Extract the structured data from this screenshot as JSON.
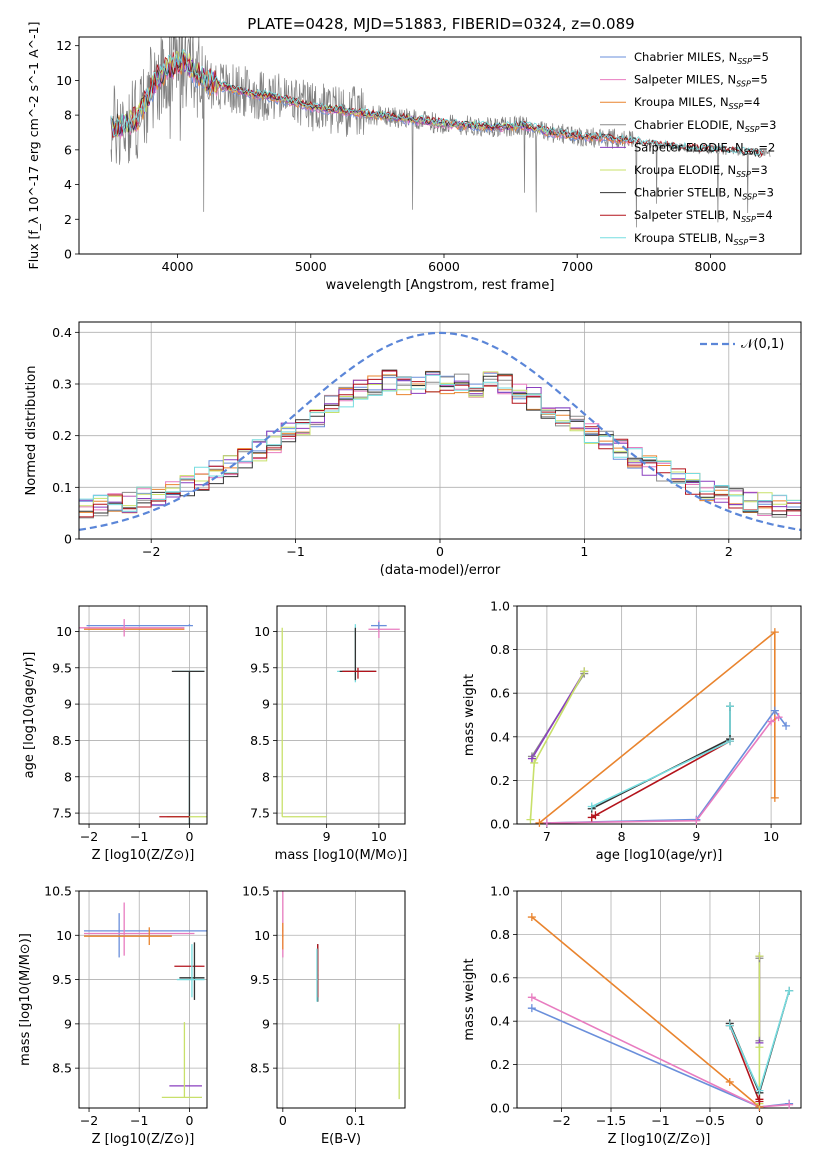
{
  "figure": {
    "title": "PLATE=0428, MJD=51883, FIBERID=0324, z=0.089"
  },
  "colors": {
    "Chabrier MILES": "#6a8fdb",
    "Salpeter MILES": "#e87cc0",
    "Kroupa MILES": "#e9842e",
    "Chabrier ELODIE": "#8b8b8b",
    "Salpeter ELODIE": "#8a3fbf",
    "Kroupa ELODIE": "#c8e06a",
    "Chabrier STELIB": "#333333",
    "Salpeter STELIB": "#b3131b",
    "Kroupa STELIB": "#76dde0",
    "gauss": "#5b86d8"
  },
  "chart_data": [
    {
      "id": "spectrum",
      "type": "line",
      "xlabel": "wavelength [Angstrom, rest frame]",
      "ylabel": "Flux [f_λ 10^-17 erg cm^-2 s^-1 A^-1]",
      "xlim": [
        3260,
        8680
      ],
      "ylim": [
        0,
        12.5
      ],
      "xticks": [
        4000,
        5000,
        6000,
        7000,
        8000
      ],
      "yticks": [
        0,
        2,
        4,
        6,
        8,
        10,
        12
      ],
      "legend_position": "top-right",
      "legend": [
        {
          "model": "Chabrier MILES",
          "nssp": "5"
        },
        {
          "model": "Salpeter MILES",
          "nssp": "5"
        },
        {
          "model": "Kroupa MILES",
          "nssp": "4"
        },
        {
          "model": "Chabrier ELODIE",
          "nssp": "3"
        },
        {
          "model": "Salpeter ELODIE",
          "nssp": "2"
        },
        {
          "model": "Kroupa ELODIE",
          "nssp": "3"
        },
        {
          "model": "Chabrier STELIB",
          "nssp": "3"
        },
        {
          "model": "Salpeter STELIB",
          "nssp": "4"
        },
        {
          "model": "Kroupa STELIB",
          "nssp": "3"
        }
      ],
      "continuum": {
        "x": [
          3500,
          3700,
          3850,
          3950,
          4050,
          4200,
          4400,
          4600,
          4800,
          5000,
          5200,
          5400,
          5600,
          5800,
          6000,
          6200,
          6400,
          6600,
          6800,
          7000,
          7200,
          7420,
          7600,
          7800,
          8000,
          8200,
          8450
        ],
        "y": [
          7.2,
          7.8,
          10.2,
          10.8,
          11.2,
          10.0,
          9.5,
          9.2,
          8.9,
          8.5,
          8.3,
          8.1,
          7.9,
          7.7,
          7.5,
          7.4,
          7.3,
          7.4,
          7.0,
          6.8,
          6.7,
          6.5,
          6.3,
          6.1,
          6.0,
          5.9,
          5.7
        ]
      },
      "grid": false
    },
    {
      "id": "residuals",
      "type": "histogram",
      "xlabel": "(data-model)/error",
      "ylabel": "Normed distribution",
      "xlim": [
        -2.5,
        2.5
      ],
      "ylim": [
        0,
        0.42
      ],
      "xticks": [
        -2,
        -1,
        0,
        1,
        2
      ],
      "yticks": [
        0.0,
        0.1,
        0.2,
        0.3,
        0.4
      ],
      "bins": 50,
      "gauss_label": "𝒩(0,1)",
      "legend_position": "top-right",
      "grid": true
    },
    {
      "id": "age-Z",
      "type": "errorbar",
      "xlabel": "Z [log10(Z/Z⊙)]",
      "ylabel": "age [log10(age/yr)]",
      "xlim": [
        -2.2,
        0.35
      ],
      "ylim": [
        7.35,
        10.35
      ],
      "xticks": [
        -2,
        -1,
        0
      ],
      "yticks": [
        7.5,
        8.0,
        8.5,
        9.0,
        9.5,
        10.0
      ],
      "grid": true
    },
    {
      "id": "age-mass",
      "type": "errorbar",
      "xlabel": "mass [log10(M/M⊙)]",
      "ylabel": "",
      "xlim": [
        8.05,
        10.5
      ],
      "ylim": [
        7.35,
        10.35
      ],
      "xticks": [
        9,
        10
      ],
      "yticks": [
        7.5,
        8.0,
        8.5,
        9.0,
        9.5,
        10.0
      ],
      "grid": true
    },
    {
      "id": "weight-age",
      "type": "line",
      "xlabel": "age [log10(age/yr)]",
      "ylabel": "mass weight",
      "xlim": [
        6.6,
        10.4
      ],
      "ylim": [
        0,
        1.0
      ],
      "xticks": [
        7,
        8,
        9,
        10
      ],
      "yticks": [
        0.0,
        0.2,
        0.4,
        0.6,
        0.8,
        1.0
      ],
      "grid": true,
      "series": [
        {
          "name": "Chabrier MILES",
          "x": [
            7.0,
            9.0,
            10.05,
            10.2
          ],
          "y": [
            0.005,
            0.02,
            0.52,
            0.45
          ]
        },
        {
          "name": "Salpeter MILES",
          "x": [
            7.0,
            9.0,
            10.0,
            10.1
          ],
          "y": [
            0.005,
            0.015,
            0.47,
            0.49
          ]
        },
        {
          "name": "Kroupa MILES",
          "x": [
            6.9,
            10.05,
            10.05
          ],
          "y": [
            0.005,
            0.88,
            0.12
          ]
        },
        {
          "name": "Chabrier ELODIE",
          "x": [
            6.8,
            7.5
          ],
          "y": [
            0.31,
            0.69
          ]
        },
        {
          "name": "Salpeter ELODIE",
          "x": [
            6.8,
            7.5
          ],
          "y": [
            0.3,
            0.7
          ]
        },
        {
          "name": "Kroupa ELODIE",
          "x": [
            6.78,
            6.83,
            7.5
          ],
          "y": [
            0.02,
            0.28,
            0.7
          ]
        },
        {
          "name": "Chabrier STELIB",
          "x": [
            7.6,
            9.45,
            9.45
          ],
          "y": [
            0.07,
            0.39,
            0.54
          ]
        },
        {
          "name": "Salpeter STELIB",
          "x": [
            7.6,
            7.65,
            9.45
          ],
          "y": [
            0.03,
            0.04,
            0.38
          ]
        },
        {
          "name": "Kroupa STELIB",
          "x": [
            7.6,
            9.45,
            9.45
          ],
          "y": [
            0.08,
            0.38,
            0.54
          ]
        }
      ]
    },
    {
      "id": "mass-Z",
      "type": "errorbar",
      "xlabel": "Z [log10(Z/Z⊙)]",
      "ylabel": "mass [log10(M/M⊙)]",
      "xlim": [
        -2.2,
        0.35
      ],
      "ylim": [
        8.05,
        10.5
      ],
      "xticks": [
        -2,
        -1,
        0
      ],
      "yticks": [
        8.5,
        9.0,
        9.5,
        10.0,
        10.5
      ],
      "grid": true
    },
    {
      "id": "mass-EBV",
      "type": "errorbar",
      "xlabel": "E(B-V)",
      "ylabel": "",
      "xlim": [
        -0.008,
        0.168
      ],
      "ylim": [
        8.05,
        10.5
      ],
      "xticks": [
        0.0,
        0.1
      ],
      "yticks": [
        8.5,
        9.0,
        9.5,
        10.0,
        10.5
      ],
      "grid": true
    },
    {
      "id": "weight-Z",
      "type": "line",
      "xlabel": "Z [log10(Z/Z⊙)]",
      "ylabel": "mass weight",
      "xlim": [
        -2.45,
        0.42
      ],
      "ylim": [
        0,
        1.0
      ],
      "xticks": [
        -2.0,
        -1.5,
        -1.0,
        -0.5,
        0.0
      ],
      "yticks": [
        0.0,
        0.2,
        0.4,
        0.6,
        0.8,
        1.0
      ],
      "grid": true,
      "series": [
        {
          "name": "Chabrier MILES",
          "x": [
            -2.3,
            0.0,
            0.3
          ],
          "y": [
            0.46,
            0.005,
            0.02
          ]
        },
        {
          "name": "Salpeter MILES",
          "x": [
            -2.3,
            0.0,
            0.3
          ],
          "y": [
            0.51,
            0.005,
            0.015
          ]
        },
        {
          "name": "Kroupa MILES",
          "x": [
            -2.3,
            -0.3,
            0.0
          ],
          "y": [
            0.88,
            0.12,
            0.005
          ]
        },
        {
          "name": "Chabrier ELODIE",
          "x": [
            0.0,
            0.0
          ],
          "y": [
            0.31,
            0.69
          ]
        },
        {
          "name": "Salpeter ELODIE",
          "x": [
            0.0,
            0.0
          ],
          "y": [
            0.3,
            0.7
          ]
        },
        {
          "name": "Kroupa ELODIE",
          "x": [
            0.0,
            0.0,
            0.0
          ],
          "y": [
            0.02,
            0.28,
            0.7
          ]
        },
        {
          "name": "Chabrier STELIB",
          "x": [
            -0.3,
            0.0,
            0.3
          ],
          "y": [
            0.39,
            0.07,
            0.54
          ]
        },
        {
          "name": "Salpeter STELIB",
          "x": [
            -0.3,
            0.0,
            0.0
          ],
          "y": [
            0.38,
            0.03,
            0.04
          ]
        },
        {
          "name": "Kroupa STELIB",
          "x": [
            -0.3,
            0.0,
            0.3
          ],
          "y": [
            0.38,
            0.08,
            0.54
          ]
        }
      ]
    }
  ]
}
